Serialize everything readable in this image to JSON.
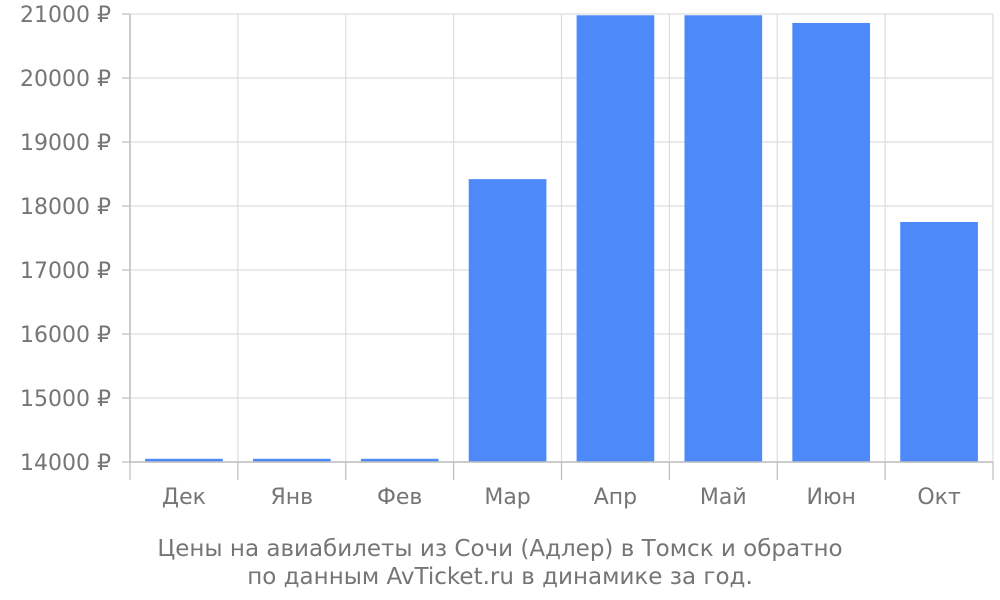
{
  "chart_data": {
    "type": "bar",
    "categories": [
      "Дек",
      "Янв",
      "Фев",
      "Мар",
      "Апр",
      "Май",
      "Июн",
      "Окт"
    ],
    "values": [
      14050,
      14050,
      14050,
      18420,
      20980,
      20980,
      20860,
      17750
    ],
    "y_ticks": [
      "14000 ₽",
      "15000 ₽",
      "16000 ₽",
      "17000 ₽",
      "18000 ₽",
      "19000 ₽",
      "20000 ₽",
      "21000 ₽"
    ],
    "ylim": [
      14000,
      21000
    ],
    "grid": true,
    "bar_color": "#4d89f9",
    "caption": [
      "Цены на авиабилеты из Сочи (Адлер) в Томск и обратно",
      "по данным AvTicket.ru в динамике за год."
    ]
  }
}
